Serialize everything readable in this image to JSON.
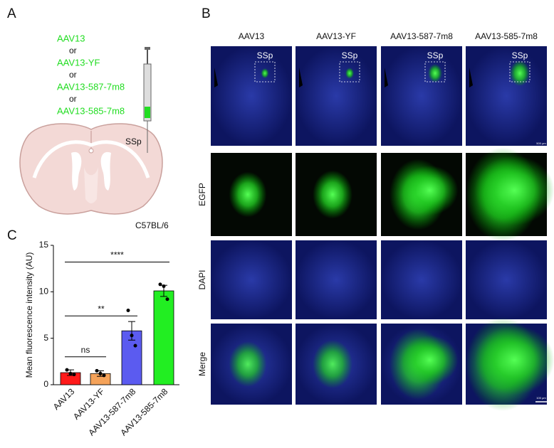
{
  "panel_labels": [
    "A",
    "B",
    "C"
  ],
  "panel_a": {
    "vectors": [
      "AAV13",
      "AAV13-YF",
      "AAV13-587-7m8",
      "AAV13-585-7m8"
    ],
    "separator": "or",
    "region": "SSp",
    "strain": "C57BL/6"
  },
  "panel_b": {
    "columns": [
      "AAV13",
      "AAV13-YF",
      "AAV13-587-7m8",
      "AAV13-585-7m8"
    ],
    "rows": [
      "EGFP",
      "DAPI",
      "Merge"
    ],
    "region": "SSp",
    "scale_bars": [
      "500 μm",
      "100 μm"
    ]
  },
  "chart_data": {
    "type": "bar",
    "categories": [
      "AAV13",
      "AAV13-YF",
      "AAV13-587-7m8",
      "AAV13-585-7m8"
    ],
    "values": [
      1.3,
      1.2,
      5.8,
      10.1
    ],
    "errors": [
      0.3,
      0.3,
      1.0,
      0.6
    ],
    "points": [
      [
        1.6,
        1.2,
        1.1
      ],
      [
        1.5,
        1.2,
        1.0
      ],
      [
        8.0,
        5.3,
        4.2
      ],
      [
        10.8,
        10.6,
        9.2
      ]
    ],
    "colors": [
      "#ff1a1a",
      "#f5a35a",
      "#5b5bf0",
      "#22ee22"
    ],
    "ylabel": "Mean fluorescence intensity (AU)",
    "ylim": [
      0,
      15
    ],
    "yticks": [
      0,
      5,
      10,
      15
    ],
    "annotations": [
      {
        "label": "ns",
        "from": 0,
        "to": 1,
        "y": 3.0
      },
      {
        "label": "**",
        "from": 0,
        "to": 2,
        "y": 7.4
      },
      {
        "label": "****",
        "from": 0,
        "to": 3,
        "y": 13.2
      }
    ]
  }
}
